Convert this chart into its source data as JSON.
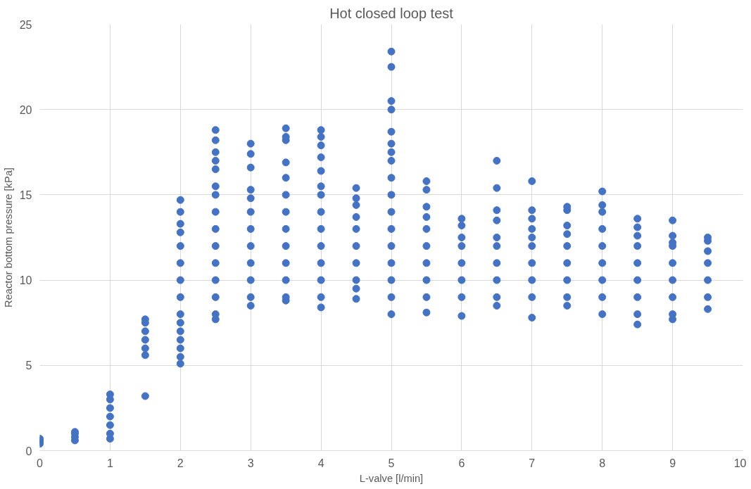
{
  "chart_data": {
    "type": "scatter",
    "title": "Hot closed loop test",
    "xlabel": "L-valve [l/min]",
    "ylabel": "Reactor bottom pressure [kPa]",
    "series": [
      {
        "color": "#4472c4",
        "x": [
          0,
          0,
          0,
          0,
          0.5,
          0.5,
          0.5,
          0.5,
          1,
          1,
          1,
          1,
          1,
          1,
          1,
          1.5,
          1.5,
          1.5,
          1.5,
          1.5,
          1.5,
          1.5,
          2,
          2,
          2,
          2,
          2,
          2,
          2,
          2,
          2,
          2,
          2,
          2,
          2,
          2,
          2,
          2.5,
          2.5,
          2.5,
          2.5,
          2.5,
          2.5,
          2.5,
          2.5,
          2.5,
          2.5,
          2.5,
          2.5,
          2.5,
          2.5,
          2.5,
          3,
          3,
          3,
          3,
          3,
          3,
          3,
          3,
          3,
          3,
          3,
          3,
          3.5,
          3.5,
          3.5,
          3.5,
          3.5,
          3.5,
          3.5,
          3.5,
          3.5,
          3.5,
          3.5,
          3.5,
          3.5,
          4,
          4,
          4,
          4,
          4,
          4,
          4,
          4,
          4,
          4,
          4,
          4,
          4,
          4,
          4.5,
          4.5,
          4.5,
          4.5,
          4.5,
          4.5,
          4.5,
          4.5,
          4.5,
          4.5,
          5,
          5,
          5,
          5,
          5,
          5,
          5,
          5,
          5,
          5,
          5,
          5,
          5,
          5,
          5,
          5,
          5,
          5.5,
          5.5,
          5.5,
          5.5,
          5.5,
          5.5,
          5.5,
          5.5,
          5.5,
          5.5,
          6,
          6,
          6,
          6,
          6,
          6,
          6,
          6,
          6.5,
          6.5,
          6.5,
          6.5,
          6.5,
          6.5,
          6.5,
          6.5,
          6.5,
          6.5,
          7,
          7,
          7,
          7,
          7,
          7,
          7,
          7,
          7,
          7,
          7.5,
          7.5,
          7.5,
          7.5,
          7.5,
          7.5,
          7.5,
          7.5,
          7.5,
          8,
          8,
          8,
          8,
          8,
          8,
          8,
          8,
          8,
          8.5,
          8.5,
          8.5,
          8.5,
          8.5,
          8.5,
          8.5,
          8.5,
          8.5,
          9,
          9,
          9,
          9,
          9,
          9,
          9,
          9,
          9,
          9.5,
          9.5,
          9.5,
          9.5,
          9.5,
          9.5,
          9.5
        ],
        "values": [
          0.4,
          0.5,
          0.6,
          0.7,
          0.6,
          0.8,
          1.0,
          1.1,
          0.7,
          1.0,
          1.5,
          2.0,
          2.5,
          3.0,
          3.3,
          3.2,
          5.6,
          6.0,
          6.5,
          7.0,
          7.5,
          7.7,
          5.1,
          5.5,
          6.0,
          6.5,
          7.0,
          7.5,
          8,
          9,
          10,
          11,
          12,
          12.8,
          13.3,
          14.0,
          14.7,
          7.7,
          8,
          9,
          10,
          11,
          12,
          13,
          14,
          15,
          15.5,
          16.5,
          17,
          17.5,
          18.2,
          18.8,
          8.5,
          9,
          10,
          11,
          12,
          13,
          14,
          14.8,
          15.3,
          16.6,
          17.4,
          18.0,
          8.8,
          9,
          10,
          11,
          12,
          13,
          14,
          15,
          16,
          16.9,
          18.2,
          18.4,
          18.9,
          8.4,
          9,
          10,
          11,
          12,
          13,
          14,
          15,
          15.5,
          16.4,
          17.2,
          17.9,
          18.4,
          18.8,
          8.9,
          9.5,
          10,
          11,
          12,
          13,
          13.7,
          14.4,
          14.8,
          15.4,
          8,
          9,
          10,
          11,
          12,
          13,
          14,
          15,
          16,
          17,
          17.5,
          18,
          18.7,
          20,
          20.5,
          22.5,
          23.4,
          8.1,
          9,
          10,
          11,
          12,
          13,
          13.7,
          14.3,
          15.3,
          15.8,
          7.9,
          9,
          10,
          11,
          12,
          12.5,
          13.2,
          13.6,
          8.5,
          9,
          10,
          11,
          12,
          12.5,
          13.5,
          14.1,
          15.4,
          17.0,
          7.8,
          9,
          10,
          11,
          12,
          12.5,
          13.0,
          13.6,
          14.1,
          15.8,
          8.5,
          9,
          10,
          11,
          12,
          12.7,
          13.2,
          14.1,
          14.3,
          8,
          9,
          10,
          11,
          12,
          13,
          14,
          14.4,
          15.2,
          7.4,
          8,
          9,
          10,
          11,
          12,
          12.6,
          13.1,
          13.6,
          7.7,
          8,
          9,
          10,
          11,
          12,
          12.2,
          12.6,
          13.5,
          8.3,
          9,
          10,
          11,
          11.7,
          12.3,
          12.5
        ]
      }
    ],
    "xlim": [
      0,
      10
    ],
    "xticks": [
      0,
      1,
      2,
      3,
      4,
      5,
      6,
      7,
      8,
      9,
      10
    ],
    "ylim": [
      0,
      25
    ],
    "yticks": [
      0,
      5,
      10,
      15,
      20,
      25
    ],
    "grid": true,
    "marker": "circle"
  }
}
